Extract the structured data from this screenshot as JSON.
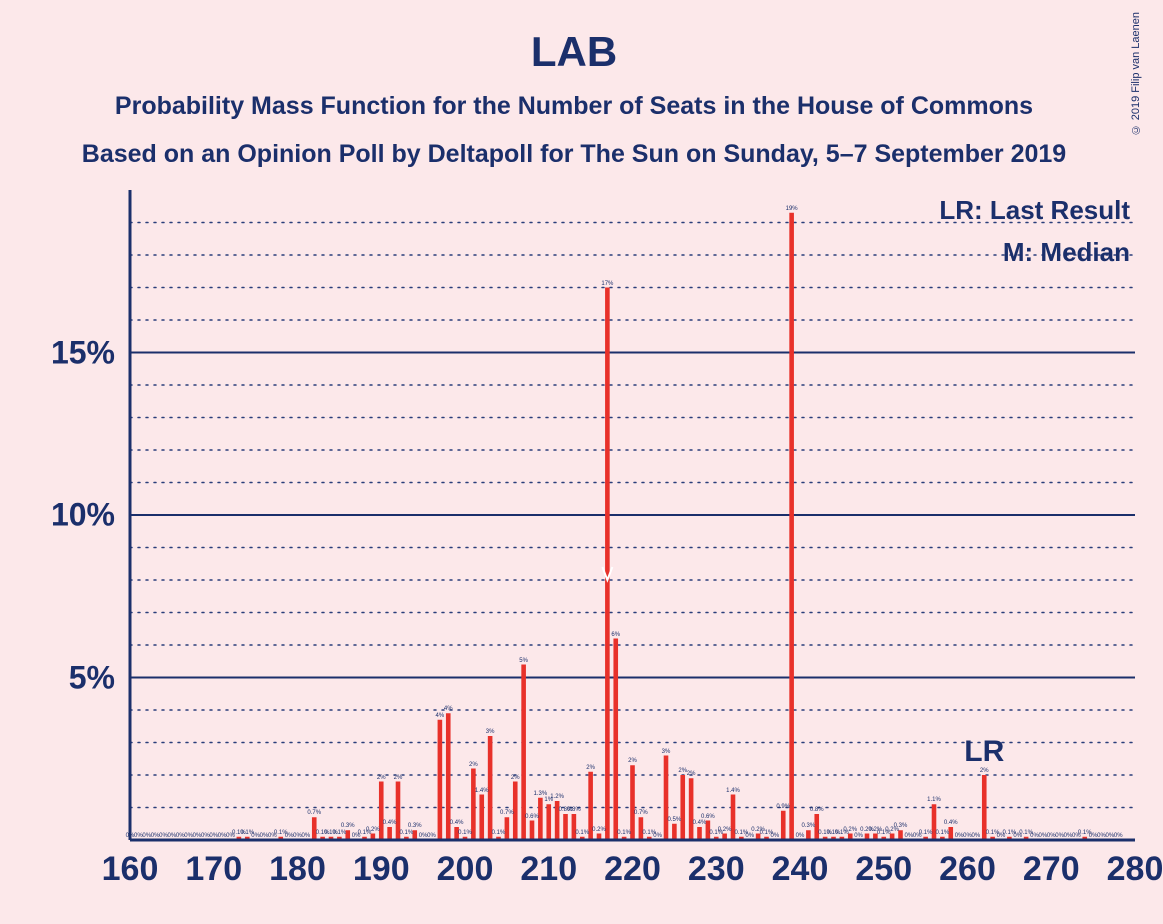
{
  "title": "LAB",
  "subtitle1": "Probability Mass Function for the Number of Seats in the House of Commons",
  "subtitle2": "Based on an Opinion Poll by Deltapoll for The Sun on Sunday, 5–7 September 2019",
  "legend": {
    "lr": "LR: Last Result",
    "m": "M: Median"
  },
  "lr_label": "LR",
  "copyright": "© 2019 Filip van Laenen",
  "chart": {
    "type": "bar",
    "x_min": 160,
    "x_max": 280,
    "y_min": 0,
    "y_max": 20,
    "x_ticks": [
      160,
      170,
      180,
      190,
      200,
      210,
      220,
      230,
      240,
      250,
      260,
      270,
      280
    ],
    "y_major_ticks": [
      5,
      10,
      15
    ],
    "y_minor_ticks": [
      1,
      2,
      3,
      4,
      6,
      7,
      8,
      9,
      11,
      12,
      13,
      14,
      16,
      17,
      18,
      19
    ],
    "bar_color": "#e8312a",
    "background_color": "#fce8ea",
    "axis_color": "#1b2f6b",
    "major_grid_color": "#1b2f6b",
    "minor_grid_color": "#2a3e7a",
    "text_color": "#1b2f6b",
    "lr_position": 262,
    "median_position": 217,
    "bars": [
      {
        "x": 160,
        "v": 0,
        "l": "0%"
      },
      {
        "x": 161,
        "v": 0,
        "l": "0%"
      },
      {
        "x": 162,
        "v": 0,
        "l": "0%"
      },
      {
        "x": 163,
        "v": 0,
        "l": "0%"
      },
      {
        "x": 164,
        "v": 0,
        "l": "0%"
      },
      {
        "x": 165,
        "v": 0,
        "l": "0%"
      },
      {
        "x": 166,
        "v": 0,
        "l": "0%"
      },
      {
        "x": 167,
        "v": 0,
        "l": "0%"
      },
      {
        "x": 168,
        "v": 0,
        "l": "0%"
      },
      {
        "x": 169,
        "v": 0,
        "l": "0%"
      },
      {
        "x": 170,
        "v": 0,
        "l": "0%"
      },
      {
        "x": 171,
        "v": 0,
        "l": "0%"
      },
      {
        "x": 172,
        "v": 0,
        "l": "0%"
      },
      {
        "x": 173,
        "v": 0.1,
        "l": "0.1%"
      },
      {
        "x": 174,
        "v": 0.1,
        "l": "0.1%"
      },
      {
        "x": 175,
        "v": 0,
        "l": "0%"
      },
      {
        "x": 176,
        "v": 0,
        "l": "0%"
      },
      {
        "x": 177,
        "v": 0,
        "l": "0%"
      },
      {
        "x": 178,
        "v": 0.1,
        "l": "0.1%"
      },
      {
        "x": 179,
        "v": 0,
        "l": "0%"
      },
      {
        "x": 180,
        "v": 0,
        "l": "0%"
      },
      {
        "x": 181,
        "v": 0,
        "l": "0%"
      },
      {
        "x": 182,
        "v": 0.7,
        "l": "0.7%"
      },
      {
        "x": 183,
        "v": 0.1,
        "l": "0.1%"
      },
      {
        "x": 184,
        "v": 0.1,
        "l": "0.1%"
      },
      {
        "x": 185,
        "v": 0.1,
        "l": "0.1%"
      },
      {
        "x": 186,
        "v": 0.3,
        "l": "0.3%"
      },
      {
        "x": 187,
        "v": 0,
        "l": "0%"
      },
      {
        "x": 188,
        "v": 0.1,
        "l": "0.1%"
      },
      {
        "x": 189,
        "v": 0.2,
        "l": "0.2%"
      },
      {
        "x": 190,
        "v": 1.8,
        "l": "2%"
      },
      {
        "x": 191,
        "v": 0.4,
        "l": "0.4%"
      },
      {
        "x": 192,
        "v": 1.8,
        "l": "2%"
      },
      {
        "x": 193,
        "v": 0.1,
        "l": "0.1%"
      },
      {
        "x": 194,
        "v": 0.3,
        "l": "0.3%"
      },
      {
        "x": 195,
        "v": 0,
        "l": "0%"
      },
      {
        "x": 196,
        "v": 0,
        "l": "0%"
      },
      {
        "x": 197,
        "v": 3.7,
        "l": "4%"
      },
      {
        "x": 198,
        "v": 3.9,
        "l": "4%"
      },
      {
        "x": 199,
        "v": 0.4,
        "l": "0.4%"
      },
      {
        "x": 200,
        "v": 0.1,
        "l": "0.1%"
      },
      {
        "x": 201,
        "v": 2.2,
        "l": "2%"
      },
      {
        "x": 202,
        "v": 1.4,
        "l": "1.4%"
      },
      {
        "x": 203,
        "v": 3.2,
        "l": "3%"
      },
      {
        "x": 204,
        "v": 0.1,
        "l": "0.1%"
      },
      {
        "x": 205,
        "v": 0.7,
        "l": "0.7%"
      },
      {
        "x": 206,
        "v": 1.8,
        "l": "2%"
      },
      {
        "x": 207,
        "v": 5.4,
        "l": "5%"
      },
      {
        "x": 208,
        "v": 0.6,
        "l": "0.6%"
      },
      {
        "x": 209,
        "v": 1.3,
        "l": "1.3%"
      },
      {
        "x": 210,
        "v": 1.1,
        "l": "1%"
      },
      {
        "x": 211,
        "v": 1.2,
        "l": "1.2%"
      },
      {
        "x": 212,
        "v": 0.8,
        "l": "0.8%"
      },
      {
        "x": 213,
        "v": 0.8,
        "l": "0.8%"
      },
      {
        "x": 214,
        "v": 0.1,
        "l": "0.1%"
      },
      {
        "x": 215,
        "v": 2.1,
        "l": "2%"
      },
      {
        "x": 216,
        "v": 0.2,
        "l": "0.2%"
      },
      {
        "x": 217,
        "v": 17,
        "l": "17%"
      },
      {
        "x": 218,
        "v": 6.2,
        "l": "6%"
      },
      {
        "x": 219,
        "v": 0.1,
        "l": "0.1%"
      },
      {
        "x": 220,
        "v": 2.3,
        "l": "2%"
      },
      {
        "x": 221,
        "v": 0.7,
        "l": "0.7%"
      },
      {
        "x": 222,
        "v": 0.1,
        "l": "0.1%"
      },
      {
        "x": 223,
        "v": 0,
        "l": "0%"
      },
      {
        "x": 224,
        "v": 2.6,
        "l": "3%"
      },
      {
        "x": 225,
        "v": 0.5,
        "l": "0.5%"
      },
      {
        "x": 226,
        "v": 2.0,
        "l": "2%"
      },
      {
        "x": 227,
        "v": 1.9,
        "l": "2%"
      },
      {
        "x": 228,
        "v": 0.4,
        "l": "0.4%"
      },
      {
        "x": 229,
        "v": 0.6,
        "l": "0.6%"
      },
      {
        "x": 230,
        "v": 0.1,
        "l": "0.1%"
      },
      {
        "x": 231,
        "v": 0.2,
        "l": "0.2%"
      },
      {
        "x": 232,
        "v": 1.4,
        "l": "1.4%"
      },
      {
        "x": 233,
        "v": 0.1,
        "l": "0.1%"
      },
      {
        "x": 234,
        "v": 0,
        "l": "0%"
      },
      {
        "x": 235,
        "v": 0.2,
        "l": "0.2%"
      },
      {
        "x": 236,
        "v": 0.1,
        "l": "0.1%"
      },
      {
        "x": 237,
        "v": 0,
        "l": "0%"
      },
      {
        "x": 238,
        "v": 0.9,
        "l": "0.9%"
      },
      {
        "x": 239,
        "v": 19.3,
        "l": "19%"
      },
      {
        "x": 240,
        "v": 0,
        "l": "0%"
      },
      {
        "x": 241,
        "v": 0.3,
        "l": "0.3%"
      },
      {
        "x": 242,
        "v": 0.8,
        "l": "0.8%"
      },
      {
        "x": 243,
        "v": 0.1,
        "l": "0.1%"
      },
      {
        "x": 244,
        "v": 0.1,
        "l": "0.1%"
      },
      {
        "x": 245,
        "v": 0.1,
        "l": "0.1%"
      },
      {
        "x": 246,
        "v": 0.2,
        "l": "0.2%"
      },
      {
        "x": 247,
        "v": 0,
        "l": "0%"
      },
      {
        "x": 248,
        "v": 0.2,
        "l": "0.2%"
      },
      {
        "x": 249,
        "v": 0.2,
        "l": "0.2%"
      },
      {
        "x": 250,
        "v": 0.1,
        "l": "0.1%"
      },
      {
        "x": 251,
        "v": 0.2,
        "l": "0.2%"
      },
      {
        "x": 252,
        "v": 0.3,
        "l": "0.3%"
      },
      {
        "x": 253,
        "v": 0,
        "l": "0%"
      },
      {
        "x": 254,
        "v": 0,
        "l": "0%"
      },
      {
        "x": 255,
        "v": 0.1,
        "l": "0.1%"
      },
      {
        "x": 256,
        "v": 1.1,
        "l": "1.1%"
      },
      {
        "x": 257,
        "v": 0.1,
        "l": "0.1%"
      },
      {
        "x": 258,
        "v": 0.4,
        "l": "0.4%"
      },
      {
        "x": 259,
        "v": 0,
        "l": "0%"
      },
      {
        "x": 260,
        "v": 0,
        "l": "0%"
      },
      {
        "x": 261,
        "v": 0,
        "l": "0%"
      },
      {
        "x": 262,
        "v": 2.0,
        "l": "2%"
      },
      {
        "x": 263,
        "v": 0.1,
        "l": "0.1%"
      },
      {
        "x": 264,
        "v": 0,
        "l": "0%"
      },
      {
        "x": 265,
        "v": 0.1,
        "l": "0.1%"
      },
      {
        "x": 266,
        "v": 0,
        "l": "0%"
      },
      {
        "x": 267,
        "v": 0.1,
        "l": "0.1%"
      },
      {
        "x": 268,
        "v": 0,
        "l": "0%"
      },
      {
        "x": 269,
        "v": 0,
        "l": "0%"
      },
      {
        "x": 270,
        "v": 0,
        "l": "0%"
      },
      {
        "x": 271,
        "v": 0,
        "l": "0%"
      },
      {
        "x": 272,
        "v": 0,
        "l": "0%"
      },
      {
        "x": 273,
        "v": 0,
        "l": "0%"
      },
      {
        "x": 274,
        "v": 0.1,
        "l": "0.1%"
      },
      {
        "x": 275,
        "v": 0,
        "l": "0%"
      },
      {
        "x": 276,
        "v": 0,
        "l": "0%"
      },
      {
        "x": 277,
        "v": 0,
        "l": "0%"
      },
      {
        "x": 278,
        "v": 0,
        "l": "0%"
      }
    ]
  }
}
